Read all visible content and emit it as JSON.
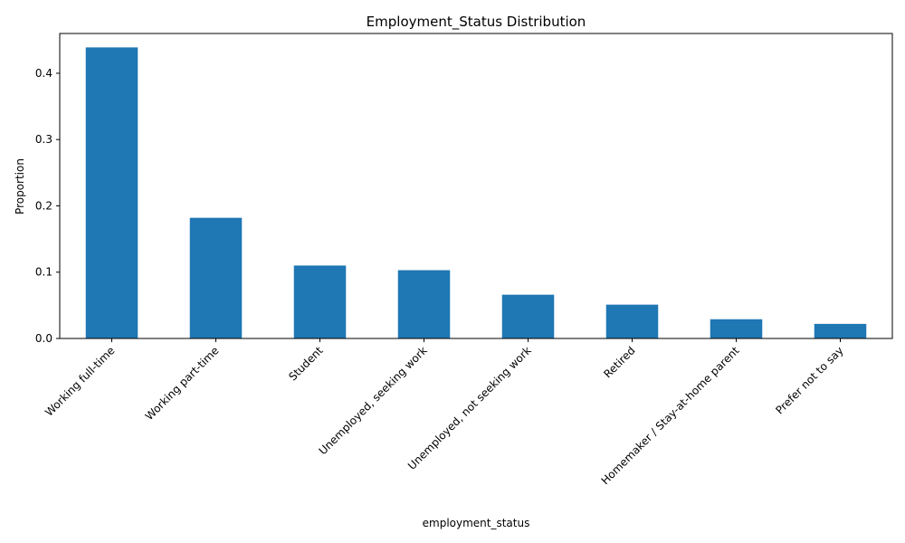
{
  "chart_data": {
    "type": "bar",
    "title": "Employment_Status Distribution",
    "xlabel": "employment_status",
    "ylabel": "Proportion",
    "categories": [
      "Working full-time",
      "Working part-time",
      "Student",
      "Unemployed, seeking work",
      "Unemployed, not seeking work",
      "Retired",
      "Homemaker / Stay-at-home parent",
      "Prefer not to say"
    ],
    "values": [
      0.439,
      0.182,
      0.11,
      0.103,
      0.066,
      0.051,
      0.029,
      0.022
    ],
    "ylim": [
      0,
      0.46
    ],
    "yticks": [
      0.0,
      0.1,
      0.2,
      0.3,
      0.4
    ],
    "ytick_labels": [
      "0.0",
      "0.1",
      "0.2",
      "0.3",
      "0.4"
    ],
    "bar_color": "#1f77b4",
    "grid": false,
    "legend": "none"
  }
}
